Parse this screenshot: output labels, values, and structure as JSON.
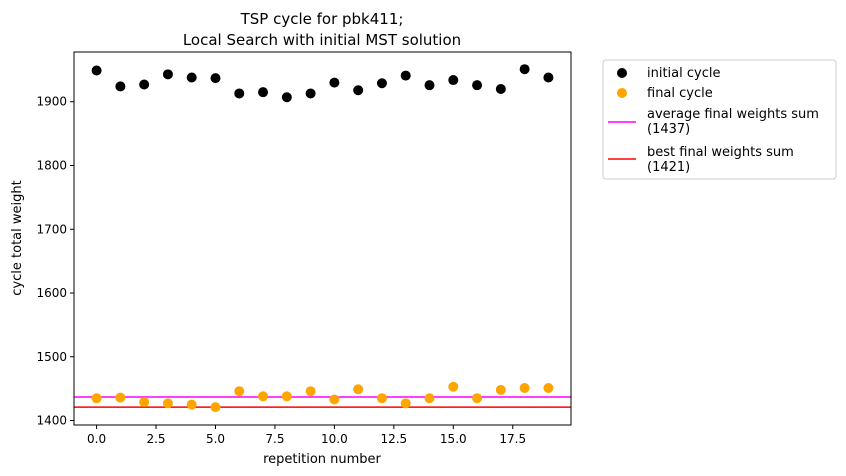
{
  "chart_data": {
    "type": "scatter",
    "title_line1": "TSP cycle for pbk411;",
    "title_line2": "Local Search with initial MST solution",
    "xlabel": "repetition number",
    "ylabel": "cycle total weight",
    "xlim": [
      -0.95,
      19.95
    ],
    "ylim": [
      1393,
      1978
    ],
    "xticks": [
      0.0,
      2.5,
      5.0,
      7.5,
      10.0,
      12.5,
      15.0,
      17.5
    ],
    "xtick_labels": [
      "0.0",
      "2.5",
      "5.0",
      "7.5",
      "10.0",
      "12.5",
      "15.0",
      "17.5"
    ],
    "yticks": [
      1400,
      1500,
      1600,
      1700,
      1800,
      1900
    ],
    "ytick_labels": [
      "1400",
      "1500",
      "1600",
      "1700",
      "1800",
      "1900"
    ],
    "grid": false,
    "legend_placement": "outside-upper-right",
    "x": [
      0,
      1,
      2,
      3,
      4,
      5,
      6,
      7,
      8,
      9,
      10,
      11,
      12,
      13,
      14,
      15,
      16,
      17,
      18,
      19
    ],
    "series": [
      {
        "name": "initial cycle",
        "kind": "scatter",
        "color": "#000000",
        "values": [
          1949,
          1924,
          1927,
          1943,
          1938,
          1937,
          1913,
          1915,
          1907,
          1913,
          1930,
          1918,
          1929,
          1941,
          1926,
          1934,
          1926,
          1920,
          1951,
          1938
        ]
      },
      {
        "name": "final cycle",
        "kind": "scatter",
        "color": "#ffa500",
        "values": [
          1435,
          1436,
          1429,
          1427,
          1425,
          1421,
          1446,
          1438,
          1438,
          1446,
          1433,
          1449,
          1435,
          1427,
          1435,
          1453,
          1435,
          1448,
          1451,
          1451
        ]
      }
    ],
    "hlines": [
      {
        "name_line1": "average final weights sum",
        "name_line2": "(1437)",
        "value": 1437,
        "color": "#ff00ff"
      },
      {
        "name_line1": "best final weights sum",
        "name_line2": "(1421)",
        "value": 1421,
        "color": "#ff0000"
      }
    ]
  }
}
